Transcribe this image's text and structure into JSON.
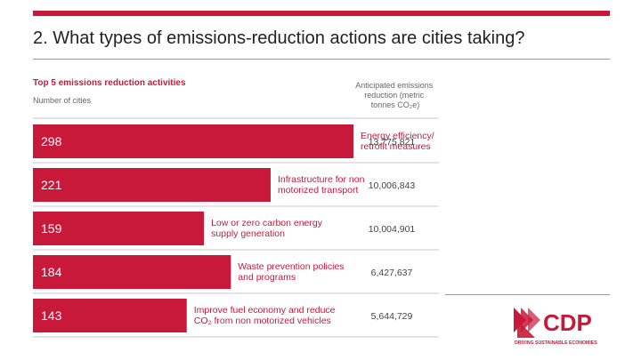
{
  "slide": {
    "title": "2. What types of emissions-reduction actions are cities taking?"
  },
  "chart_data": {
    "type": "bar",
    "orientation": "horizontal",
    "title": "Top 5 emissions reduction activities",
    "subtitle": "Number of cities",
    "value_column_header": [
      "Anticipated emissions",
      "reduction (metric",
      "tonnes CO₂e)"
    ],
    "categories": [
      [
        "Energy efficiency/",
        "retrofit measures"
      ],
      [
        "Infrastructure for non",
        "motorized transport"
      ],
      [
        "Low or zero carbon energy",
        "supply generation"
      ],
      [
        "Waste prevention policies",
        "and programs"
      ],
      [
        "Improve fuel economy and reduce",
        "CO₂ from non motorized vehicles"
      ]
    ],
    "values": [
      298,
      221,
      159,
      184,
      143
    ],
    "value_labels": [
      "298",
      "221",
      "159",
      "184",
      "143"
    ],
    "anticipated_reduction": [
      "13,775,821",
      "10,006,843",
      "10,004,901",
      "6,427,637",
      "5,644,729"
    ],
    "bar_color": "#c8193a"
  },
  "logo": {
    "text": "CDP",
    "tagline": "DRIVING SUSTAINABLE ECONOMIES",
    "color": "#c8193a"
  }
}
